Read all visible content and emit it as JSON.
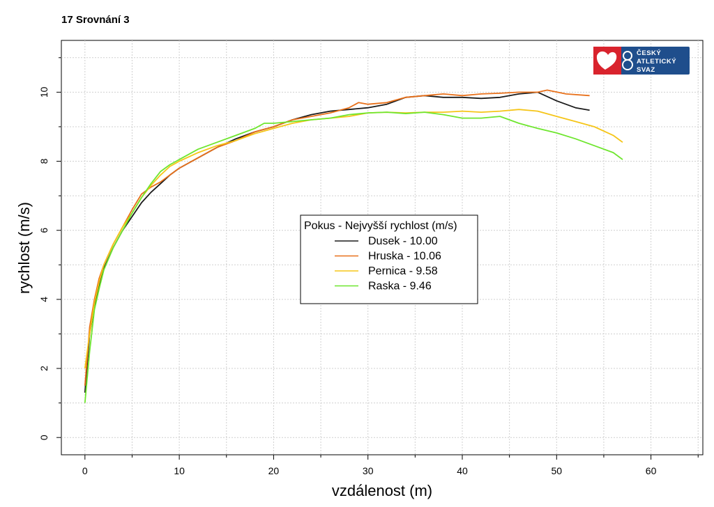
{
  "page": {
    "title": "17 Srovnání 3"
  },
  "logo": {
    "lines": [
      "ČESKÝ",
      "ATLETICKÝ",
      "SVAZ"
    ]
  },
  "colors": {
    "Dusek": "#1a1a1a",
    "Hruska": "#e8701a",
    "Pernica": "#f5c518",
    "Raska": "#6ee62e",
    "grid": "#cfcfcf",
    "logo_bg": "#1f4e8c",
    "logo_red": "#d9232d"
  },
  "chart_data": {
    "type": "line",
    "title": "17 Srovnání 3",
    "xlabel": "vzdálenost (m)",
    "ylabel": "rychlost (m/s)",
    "xlim": [
      -2.5,
      65.5
    ],
    "ylim": [
      -0.5,
      11.5
    ],
    "xticks": [
      0,
      10,
      20,
      30,
      40,
      50,
      60
    ],
    "yticks": [
      0,
      2,
      4,
      6,
      8,
      10
    ],
    "grid": true,
    "legend": {
      "title": "Pokus - Nejvyšší rychlost (m/s)",
      "placement": "center"
    },
    "series": [
      {
        "name": "Dusek - 10.00",
        "color": "#1a1a1a",
        "points": [
          [
            0,
            1.3
          ],
          [
            0.5,
            3.0
          ],
          [
            1,
            3.8
          ],
          [
            1.5,
            4.4
          ],
          [
            2,
            4.9
          ],
          [
            3,
            5.5
          ],
          [
            4,
            6.0
          ],
          [
            5,
            6.4
          ],
          [
            6,
            6.8
          ],
          [
            7,
            7.1
          ],
          [
            8,
            7.35
          ],
          [
            9,
            7.6
          ],
          [
            10,
            7.8
          ],
          [
            12,
            8.1
          ],
          [
            14,
            8.4
          ],
          [
            16,
            8.65
          ],
          [
            18,
            8.85
          ],
          [
            20,
            9.0
          ],
          [
            22,
            9.2
          ],
          [
            24,
            9.35
          ],
          [
            26,
            9.45
          ],
          [
            28,
            9.5
          ],
          [
            30,
            9.55
          ],
          [
            32,
            9.65
          ],
          [
            34,
            9.85
          ],
          [
            36,
            9.9
          ],
          [
            38,
            9.85
          ],
          [
            40,
            9.85
          ],
          [
            42,
            9.82
          ],
          [
            44,
            9.85
          ],
          [
            46,
            9.95
          ],
          [
            48,
            10.0
          ],
          [
            50,
            9.75
          ],
          [
            52,
            9.55
          ],
          [
            53.5,
            9.48
          ]
        ]
      },
      {
        "name": "Hruska - 10.06",
        "color": "#e8701a",
        "points": [
          [
            0,
            1.5
          ],
          [
            0.5,
            3.2
          ],
          [
            1,
            4.0
          ],
          [
            1.5,
            4.6
          ],
          [
            2,
            5.0
          ],
          [
            3,
            5.6
          ],
          [
            4,
            6.1
          ],
          [
            5,
            6.6
          ],
          [
            6,
            7.05
          ],
          [
            7,
            7.25
          ],
          [
            8,
            7.4
          ],
          [
            9,
            7.6
          ],
          [
            10,
            7.8
          ],
          [
            12,
            8.1
          ],
          [
            14,
            8.4
          ],
          [
            16,
            8.6
          ],
          [
            18,
            8.85
          ],
          [
            20,
            9.0
          ],
          [
            22,
            9.2
          ],
          [
            24,
            9.3
          ],
          [
            26,
            9.4
          ],
          [
            28,
            9.55
          ],
          [
            29,
            9.7
          ],
          [
            30,
            9.65
          ],
          [
            32,
            9.7
          ],
          [
            34,
            9.85
          ],
          [
            36,
            9.9
          ],
          [
            38,
            9.95
          ],
          [
            40,
            9.9
          ],
          [
            42,
            9.95
          ],
          [
            44,
            9.97
          ],
          [
            46,
            10.0
          ],
          [
            48,
            10.0
          ],
          [
            49,
            10.06
          ],
          [
            51,
            9.95
          ],
          [
            53.5,
            9.9
          ]
        ]
      },
      {
        "name": "Pernica -  9.58",
        "color": "#f5c518",
        "points": [
          [
            0,
            2.0
          ],
          [
            0.5,
            3.0
          ],
          [
            1,
            3.9
          ],
          [
            1.5,
            4.5
          ],
          [
            2,
            5.0
          ],
          [
            3,
            5.6
          ],
          [
            4,
            6.1
          ],
          [
            5,
            6.5
          ],
          [
            6,
            6.95
          ],
          [
            7,
            7.3
          ],
          [
            8,
            7.6
          ],
          [
            9,
            7.85
          ],
          [
            10,
            8.0
          ],
          [
            12,
            8.25
          ],
          [
            14,
            8.45
          ],
          [
            16,
            8.6
          ],
          [
            18,
            8.8
          ],
          [
            20,
            8.95
          ],
          [
            22,
            9.1
          ],
          [
            24,
            9.2
          ],
          [
            26,
            9.25
          ],
          [
            28,
            9.3
          ],
          [
            30,
            9.4
          ],
          [
            32,
            9.42
          ],
          [
            34,
            9.4
          ],
          [
            36,
            9.42
          ],
          [
            38,
            9.42
          ],
          [
            40,
            9.45
          ],
          [
            42,
            9.42
          ],
          [
            44,
            9.45
          ],
          [
            46,
            9.5
          ],
          [
            48,
            9.45
          ],
          [
            50,
            9.3
          ],
          [
            52,
            9.15
          ],
          [
            54,
            9.0
          ],
          [
            56,
            8.75
          ],
          [
            57,
            8.55
          ]
        ]
      },
      {
        "name": "Raska -  9.46",
        "color": "#6ee62e",
        "points": [
          [
            0,
            1.0
          ],
          [
            0.5,
            2.5
          ],
          [
            1,
            3.7
          ],
          [
            1.5,
            4.3
          ],
          [
            2,
            4.85
          ],
          [
            3,
            5.5
          ],
          [
            4,
            6.0
          ],
          [
            5,
            6.5
          ],
          [
            6,
            6.95
          ],
          [
            7,
            7.35
          ],
          [
            8,
            7.7
          ],
          [
            9,
            7.9
          ],
          [
            10,
            8.05
          ],
          [
            12,
            8.35
          ],
          [
            14,
            8.55
          ],
          [
            16,
            8.75
          ],
          [
            18,
            8.95
          ],
          [
            19,
            9.1
          ],
          [
            20,
            9.1
          ],
          [
            22,
            9.15
          ],
          [
            24,
            9.2
          ],
          [
            26,
            9.25
          ],
          [
            28,
            9.35
          ],
          [
            30,
            9.4
          ],
          [
            32,
            9.42
          ],
          [
            34,
            9.38
          ],
          [
            36,
            9.42
          ],
          [
            38,
            9.35
          ],
          [
            40,
            9.25
          ],
          [
            42,
            9.25
          ],
          [
            44,
            9.3
          ],
          [
            46,
            9.1
          ],
          [
            48,
            8.95
          ],
          [
            50,
            8.82
          ],
          [
            52,
            8.65
          ],
          [
            54,
            8.45
          ],
          [
            56,
            8.25
          ],
          [
            57,
            8.05
          ]
        ]
      }
    ]
  }
}
